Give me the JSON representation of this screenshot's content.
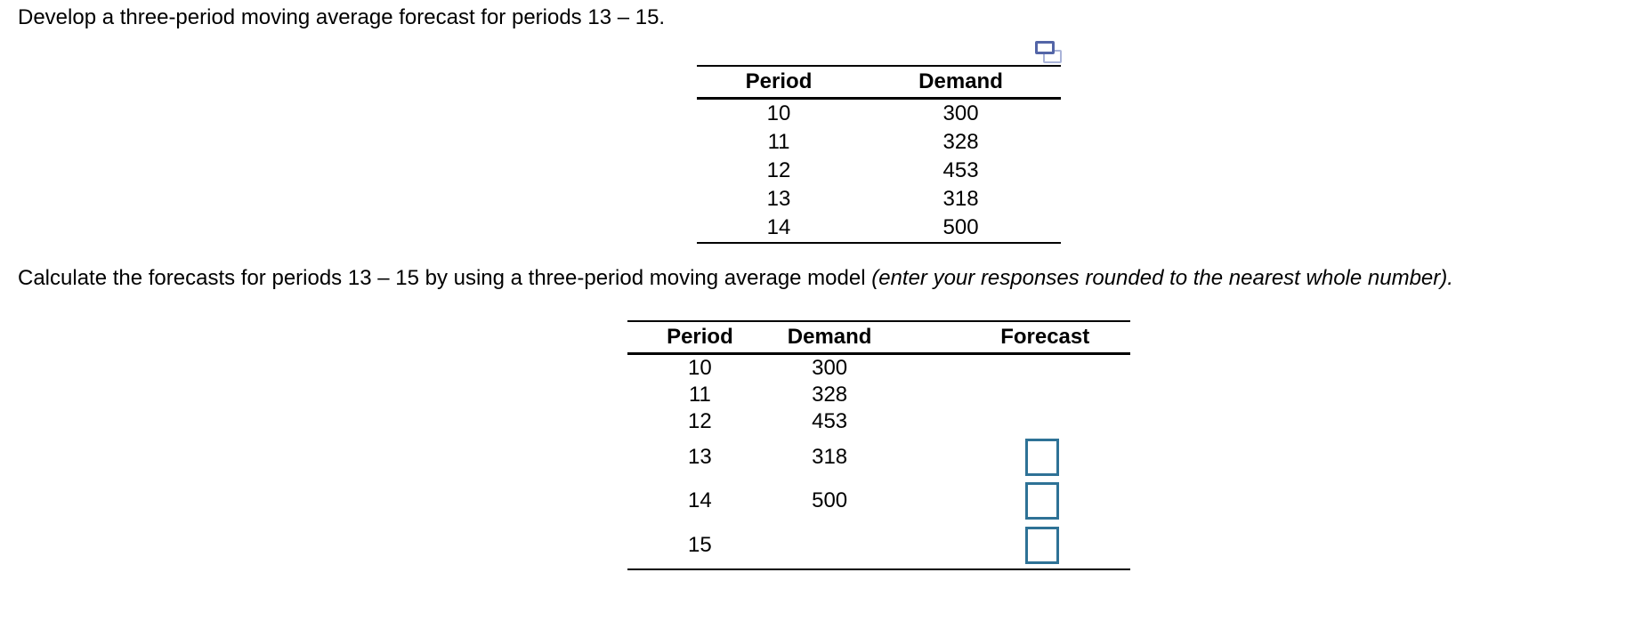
{
  "question": {
    "prompt": "Develop a three-period moving average forecast for periods 13 – 15.",
    "instruction": "Calculate the forecasts for periods 13 – 15 by using a three-period moving average model ",
    "instruction_note": "(enter your responses rounded to the nearest whole number)."
  },
  "icons": {
    "popup_icon": "overlapping-windows-popout"
  },
  "colors": {
    "text": "#000000",
    "table_rule": "#000000",
    "input_border": "#2e7296",
    "icon_front_border": "#5365a7",
    "icon_back_border": "#a9b3d8",
    "background": "#ffffff"
  },
  "data_table": {
    "headers": [
      "Period",
      "Demand"
    ],
    "rows": [
      [
        "10",
        "300"
      ],
      [
        "11",
        "328"
      ],
      [
        "12",
        "453"
      ],
      [
        "13",
        "318"
      ],
      [
        "14",
        "500"
      ]
    ]
  },
  "answer_table": {
    "headers": [
      "Period",
      "Demand",
      "Forecast"
    ],
    "rows": [
      [
        "10",
        "300"
      ],
      [
        "11",
        "328"
      ],
      [
        "12",
        "453"
      ],
      [
        "13",
        "318"
      ],
      [
        "14",
        "500"
      ],
      [
        "15",
        ""
      ]
    ],
    "inputs": {
      "forecast_13": {
        "value": "",
        "placeholder": ""
      },
      "forecast_14": {
        "value": "",
        "placeholder": ""
      },
      "forecast_15": {
        "value": "",
        "placeholder": ""
      }
    }
  }
}
